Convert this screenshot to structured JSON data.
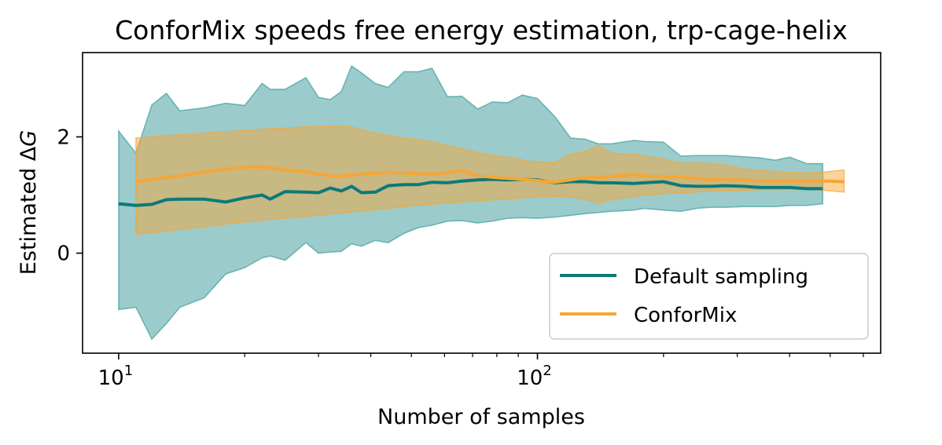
{
  "chart_data": {
    "type": "line",
    "title": "ConforMix speeds free energy estimation, trp-cage-helix",
    "xlabel": "Number of samples",
    "ylabel": "Estimated ΔG",
    "ylabel_main": "Estimated Δ",
    "ylabel_var": "G",
    "xscale": "log",
    "xlim": [
      8.2,
      660
    ],
    "ylim": [
      -1.72,
      3.45
    ],
    "xticks_major": [
      {
        "value": 10,
        "base": "10",
        "exp": "1"
      },
      {
        "value": 100,
        "base": "10",
        "exp": "2"
      }
    ],
    "xticks_minor": [
      20,
      30,
      40,
      50,
      60,
      70,
      80,
      90,
      200,
      300,
      400,
      500,
      600
    ],
    "yticks": [
      0,
      2
    ],
    "legend_position": "lower right",
    "colors": {
      "default": "#0b7a7a",
      "default_band": "#3f9c9c",
      "conformix": "#f5a637",
      "conformix_band": "#f5a637"
    },
    "series": [
      {
        "name": "Default sampling",
        "x": [
          10,
          11,
          12,
          13,
          14,
          16,
          18,
          20,
          22,
          23,
          25,
          28,
          30,
          32,
          34,
          36,
          38,
          41,
          44,
          48,
          52,
          56,
          61,
          66,
          72,
          78,
          85,
          92,
          100,
          110,
          120,
          130,
          140,
          150,
          170,
          180,
          200,
          220,
          240,
          260,
          280,
          310,
          340,
          370,
          400,
          440,
          480
        ],
        "y": [
          0.85,
          0.82,
          0.84,
          0.92,
          0.93,
          0.93,
          0.88,
          0.95,
          1.0,
          0.93,
          1.06,
          1.05,
          1.04,
          1.12,
          1.07,
          1.15,
          1.04,
          1.05,
          1.16,
          1.18,
          1.18,
          1.22,
          1.21,
          1.24,
          1.26,
          1.27,
          1.26,
          1.27,
          1.26,
          1.21,
          1.23,
          1.23,
          1.21,
          1.21,
          1.2,
          1.21,
          1.23,
          1.16,
          1.15,
          1.15,
          1.16,
          1.15,
          1.13,
          1.13,
          1.13,
          1.11,
          1.11
        ],
        "upper": [
          2.1,
          1.72,
          2.55,
          2.75,
          2.45,
          2.5,
          2.58,
          2.54,
          2.92,
          2.82,
          2.82,
          3.02,
          2.68,
          2.64,
          2.78,
          3.22,
          3.1,
          2.92,
          2.85,
          3.12,
          3.12,
          3.18,
          2.69,
          2.7,
          2.48,
          2.6,
          2.59,
          2.72,
          2.66,
          2.35,
          1.98,
          1.96,
          1.88,
          1.88,
          1.94,
          1.92,
          1.91,
          1.67,
          1.68,
          1.68,
          1.68,
          1.66,
          1.64,
          1.6,
          1.65,
          1.54,
          1.54
        ],
        "lower": [
          -0.97,
          -0.93,
          -1.48,
          -1.21,
          -0.93,
          -0.77,
          -0.36,
          -0.25,
          -0.08,
          -0.05,
          -0.12,
          0.18,
          0.0,
          0.02,
          0.03,
          0.16,
          0.12,
          0.22,
          0.18,
          0.34,
          0.44,
          0.48,
          0.55,
          0.56,
          0.52,
          0.55,
          0.6,
          0.61,
          0.6,
          0.62,
          0.65,
          0.68,
          0.7,
          0.72,
          0.74,
          0.77,
          0.74,
          0.72,
          0.77,
          0.79,
          0.79,
          0.8,
          0.8,
          0.8,
          0.82,
          0.82,
          0.85
        ]
      },
      {
        "name": "ConforMix",
        "x": [
          11,
          13,
          15,
          17,
          19,
          21,
          23,
          25,
          28,
          30,
          33,
          36,
          40,
          44,
          48,
          52,
          56,
          60,
          66,
          72,
          80,
          88,
          96,
          110,
          120,
          130,
          140,
          150,
          170,
          180,
          200,
          220,
          250,
          280,
          310,
          350,
          390,
          440,
          490,
          540
        ],
        "y": [
          1.23,
          1.3,
          1.36,
          1.42,
          1.46,
          1.49,
          1.47,
          1.43,
          1.4,
          1.36,
          1.32,
          1.34,
          1.37,
          1.39,
          1.38,
          1.36,
          1.36,
          1.38,
          1.42,
          1.33,
          1.3,
          1.28,
          1.26,
          1.22,
          1.26,
          1.3,
          1.3,
          1.32,
          1.35,
          1.33,
          1.31,
          1.31,
          1.27,
          1.26,
          1.26,
          1.24,
          1.24,
          1.24,
          1.24,
          1.23
        ],
        "upper": [
          1.98,
          2.02,
          2.05,
          2.08,
          2.1,
          2.12,
          2.14,
          2.15,
          2.17,
          2.18,
          2.19,
          2.17,
          2.08,
          2.02,
          1.98,
          1.95,
          1.92,
          1.86,
          1.8,
          1.73,
          1.67,
          1.63,
          1.58,
          1.56,
          1.7,
          1.75,
          1.85,
          1.72,
          1.7,
          1.67,
          1.62,
          1.55,
          1.55,
          1.52,
          1.45,
          1.42,
          1.39,
          1.38,
          1.4,
          1.43
        ],
        "lower": [
          0.32,
          0.38,
          0.43,
          0.48,
          0.52,
          0.55,
          0.58,
          0.6,
          0.63,
          0.65,
          0.68,
          0.71,
          0.74,
          0.77,
          0.8,
          0.82,
          0.84,
          0.86,
          0.88,
          0.9,
          0.92,
          0.94,
          0.96,
          0.98,
          0.97,
          0.92,
          0.86,
          0.92,
          0.97,
          1.0,
          1.02,
          1.04,
          1.06,
          1.08,
          1.08,
          1.09,
          1.09,
          1.1,
          1.08,
          1.05
        ]
      }
    ]
  }
}
